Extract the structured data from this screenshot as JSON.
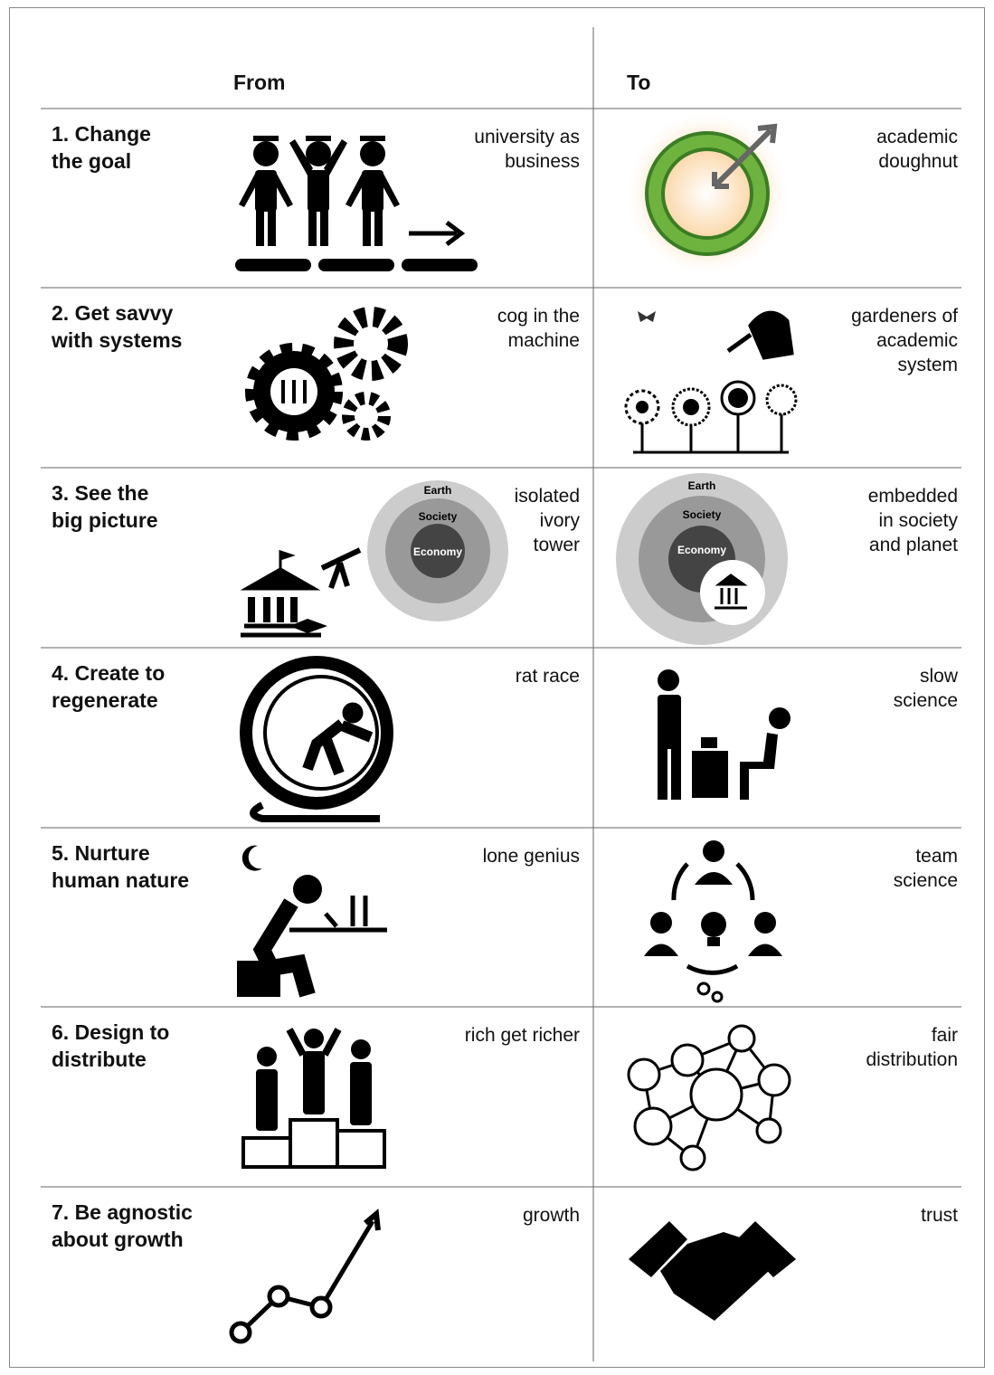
{
  "header": {
    "from": "From",
    "to": "To"
  },
  "rows": [
    {
      "label": [
        "1. Change",
        "the goal"
      ],
      "from": [
        "university as",
        "business"
      ],
      "to": [
        "academic",
        "doughnut"
      ]
    },
    {
      "label": [
        "2. Get savvy",
        "with systems"
      ],
      "from": [
        "cog in the",
        "machine"
      ],
      "to": [
        "gardeners of",
        "academic",
        "system"
      ]
    },
    {
      "label": [
        "3. See the",
        "big picture"
      ],
      "from": [
        "isolated",
        "ivory",
        "tower"
      ],
      "to": [
        "embedded",
        "in society",
        "and planet"
      ],
      "from_diagram": {
        "outer": "Earth",
        "middle": "Society",
        "inner": "Economy"
      },
      "to_diagram": {
        "outer": "Earth",
        "middle": "Society",
        "inner": "Economy"
      }
    },
    {
      "label": [
        "4. Create to",
        "regenerate"
      ],
      "from": [
        "rat race"
      ],
      "to": [
        "slow",
        "science"
      ]
    },
    {
      "label": [
        "5. Nurture",
        "human nature"
      ],
      "from": [
        "lone genius"
      ],
      "to": [
        "team",
        "science"
      ]
    },
    {
      "label": [
        "6. Design to",
        "distribute"
      ],
      "from": [
        "rich get richer"
      ],
      "to": [
        "fair",
        "distribution"
      ]
    },
    {
      "label": [
        "7. Be agnostic",
        "about growth"
      ],
      "from": [
        "growth"
      ],
      "to": [
        "trust"
      ]
    }
  ]
}
